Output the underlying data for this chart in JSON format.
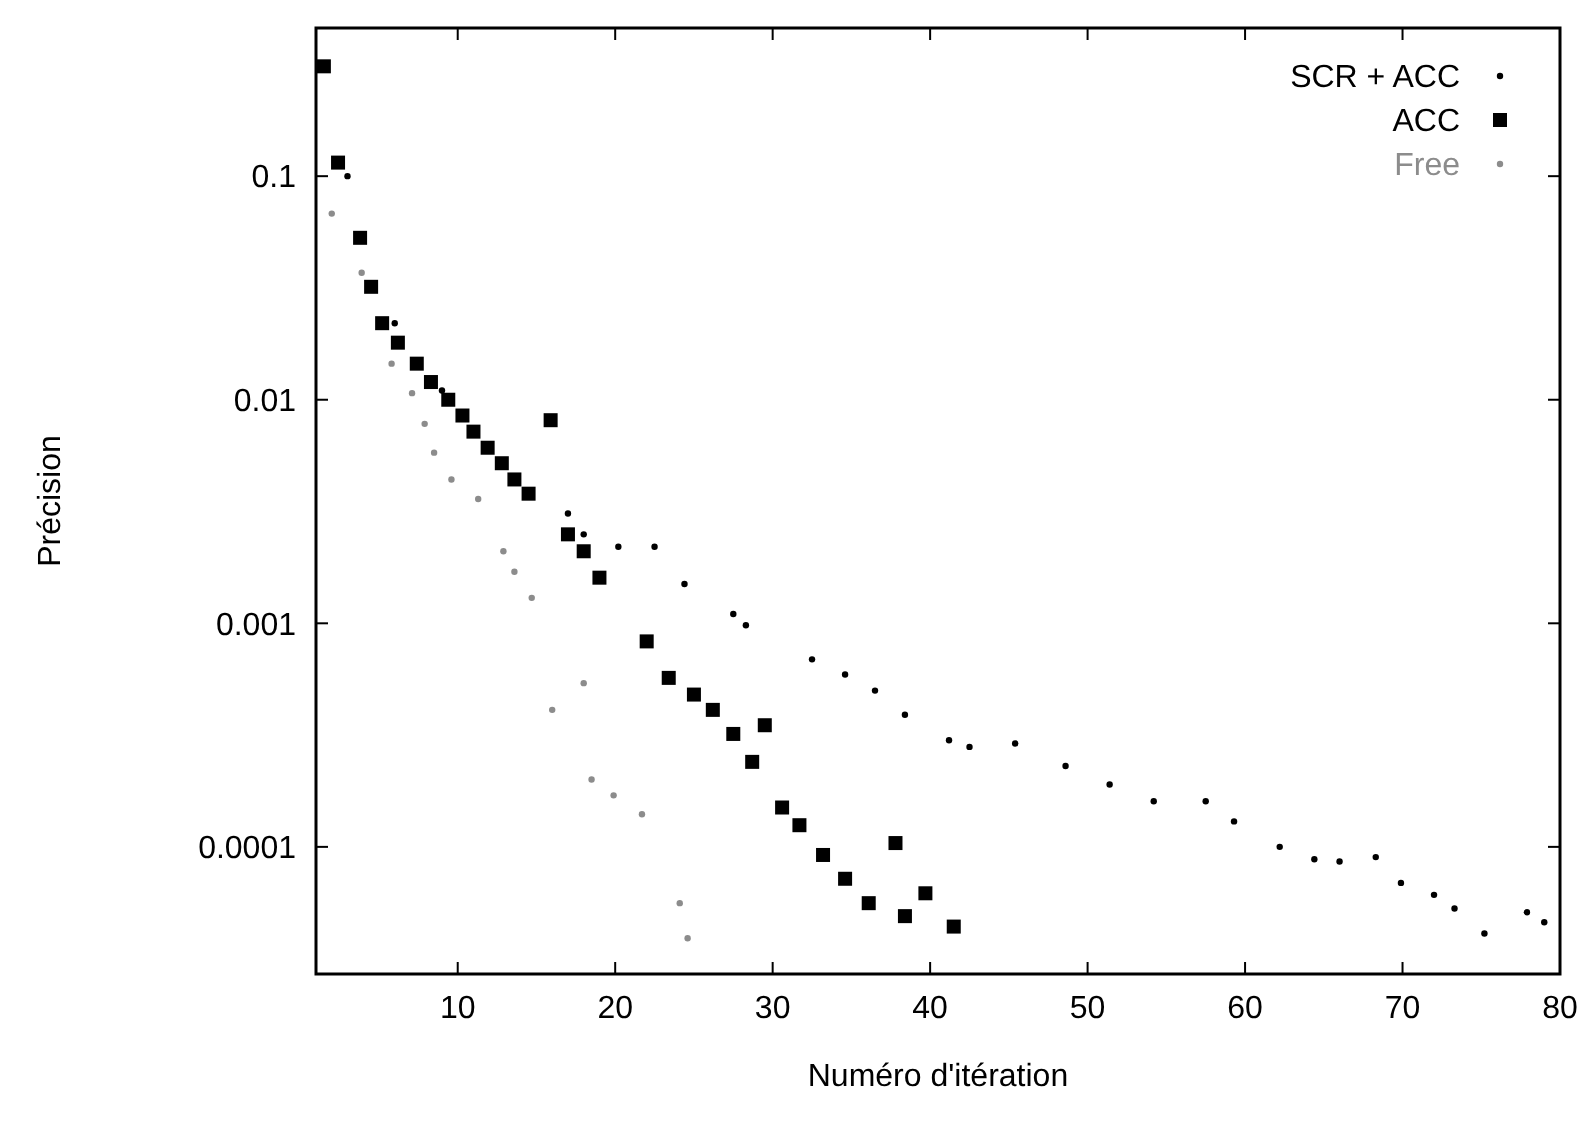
{
  "chart_data": {
    "type": "scatter",
    "xlabel": "Numéro d'itération",
    "ylabel": "Précision",
    "log": "y",
    "xlim": [
      1,
      80
    ],
    "ylim": [
      2.7e-05,
      0.46
    ],
    "xticks": [
      10,
      20,
      30,
      40,
      50,
      60,
      70,
      80
    ],
    "yticks": [
      0.1,
      0.01,
      0.001,
      0.0001
    ],
    "grid": false,
    "legend": "top right",
    "series": [
      {
        "name": "SCR + ACC",
        "color": "#000000",
        "marker": "circle",
        "x": [
          3,
          6,
          9,
          17,
          18,
          20.2,
          22.5,
          24.4,
          27.5,
          28.3,
          32.5,
          34.6,
          36.5,
          38.4,
          41.2,
          42.5,
          45.4,
          48.6,
          51.4,
          54.2,
          57.5,
          59.3,
          62.2,
          64.4,
          66,
          68.3,
          69.9,
          72,
          73.3,
          75.2,
          77.9,
          79
        ],
        "values": [
          0.1,
          0.022,
          0.011,
          0.0031,
          0.0025,
          0.0022,
          0.0022,
          0.0015,
          0.0011,
          0.00098,
          0.00069,
          0.00059,
          0.0005,
          0.00039,
          0.0003,
          0.00028,
          0.00029,
          0.00023,
          0.00019,
          0.00016,
          0.00016,
          0.00013,
          0.0001,
          8.8e-05,
          8.6e-05,
          9e-05,
          6.9e-05,
          6.1e-05,
          5.3e-05,
          4.1e-05,
          5.1e-05,
          4.6e-05
        ]
      },
      {
        "name": "ACC",
        "color": "#000000",
        "marker": "square",
        "x": [
          1.5,
          2.4,
          3.8,
          4.5,
          5.2,
          6.2,
          7.4,
          8.3,
          9.4,
          10.3,
          11,
          11.9,
          12.8,
          13.6,
          14.5,
          15.9,
          17,
          18,
          19,
          22,
          23.4,
          25,
          26.2,
          27.5,
          28.7,
          29.5,
          30.6,
          31.7,
          33.2,
          34.6,
          36.1,
          37.8,
          38.4,
          39.7,
          41.5
        ],
        "values": [
          0.31,
          0.115,
          0.053,
          0.032,
          0.022,
          0.018,
          0.0145,
          0.012,
          0.01,
          0.0085,
          0.0072,
          0.0061,
          0.0052,
          0.0044,
          0.0038,
          0.0081,
          0.0025,
          0.0021,
          0.0016,
          0.00083,
          0.00057,
          0.00048,
          0.00041,
          0.00032,
          0.00024,
          0.00035,
          0.00015,
          0.000125,
          9.2e-05,
          7.2e-05,
          5.6e-05,
          0.000104,
          4.9e-05,
          6.2e-05,
          4.4e-05
        ]
      },
      {
        "name": "Free",
        "color": "#8c8c8c",
        "marker": "circle",
        "x": [
          2,
          3.9,
          5.8,
          7.1,
          7.9,
          8.5,
          9.6,
          11.3,
          12.9,
          13.6,
          14.7,
          16,
          18,
          18.5,
          19.9,
          21.7,
          24.1,
          24.6
        ],
        "values": [
          0.068,
          0.037,
          0.0145,
          0.0107,
          0.0078,
          0.0058,
          0.0044,
          0.0036,
          0.0021,
          0.0017,
          0.0013,
          0.00041,
          0.00054,
          0.0002,
          0.00017,
          0.00014,
          5.6e-05,
          3.9e-05
        ]
      }
    ]
  }
}
